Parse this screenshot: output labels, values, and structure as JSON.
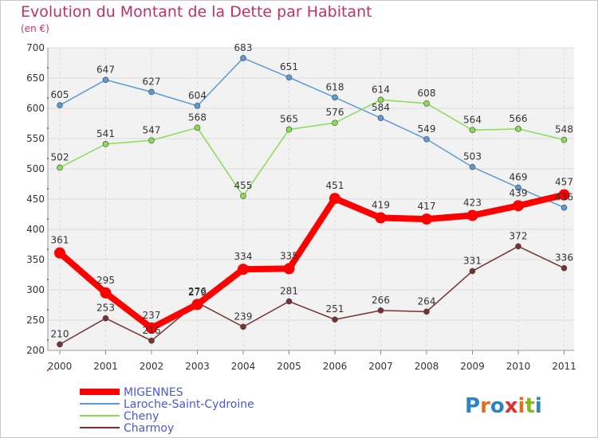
{
  "chart_title": "Evolution du Montant de la Dette par Habitant",
  "unit_label": "(en €)",
  "logo": {
    "letters": [
      "P",
      "r",
      "o",
      "x",
      "i",
      "t",
      "i"
    ],
    "colors": [
      "#2a84c6",
      "#e07020",
      "#2a84c6",
      "#e03030",
      "#e07020",
      "#88b820",
      "#2a84c6"
    ]
  },
  "chart_data": {
    "type": "line",
    "title": "Evolution du Montant de la Dette par Habitant",
    "ylabel": "(en €)",
    "x": [
      "2000",
      "2001",
      "2002",
      "2003",
      "2004",
      "2005",
      "2006",
      "2007",
      "2008",
      "2009",
      "2010",
      "2011"
    ],
    "yticks": [
      200,
      250,
      300,
      350,
      400,
      450,
      500,
      550,
      600,
      650,
      700
    ],
    "ylim": [
      200,
      700
    ],
    "grid": true,
    "legend_position": "bottom-left",
    "series": [
      {
        "name": "Laroche-Saint-Cydroine",
        "color": "#5b9bd5",
        "values": [
          605,
          647,
          627,
          604,
          683,
          651,
          618,
          584,
          549,
          503,
          469,
          436
        ],
        "labels": [
          "605",
          "647",
          "627",
          "604",
          "683",
          "651",
          "618",
          "584",
          "549",
          "503",
          "469",
          "436"
        ]
      },
      {
        "name": "Cheny",
        "color": "#88dd55",
        "values": [
          502,
          541,
          547,
          568,
          455,
          565,
          576,
          614,
          608,
          564,
          566,
          548
        ],
        "labels": [
          "502",
          "541",
          "547",
          "568",
          "455",
          "565",
          "576",
          "614",
          "608",
          "564",
          "566",
          "548"
        ]
      },
      {
        "name": "Charmoy",
        "color": "#7a3030",
        "values": [
          210,
          253,
          216,
          279,
          239,
          281,
          251,
          266,
          264,
          331,
          372,
          336
        ],
        "labels": [
          "210",
          "253",
          "216",
          "279",
          "239",
          "281",
          "251",
          "266",
          "264",
          "331",
          "372",
          "336"
        ]
      },
      {
        "name": "MIGENNES",
        "color": "#ff0000",
        "values": [
          361,
          295,
          237,
          276,
          334,
          335,
          451,
          419,
          417,
          423,
          439,
          457
        ],
        "labels": [
          "361",
          "295",
          "237",
          "276",
          "334",
          "335",
          "451",
          "419",
          "417",
          "423",
          "439",
          "457"
        ]
      }
    ]
  }
}
